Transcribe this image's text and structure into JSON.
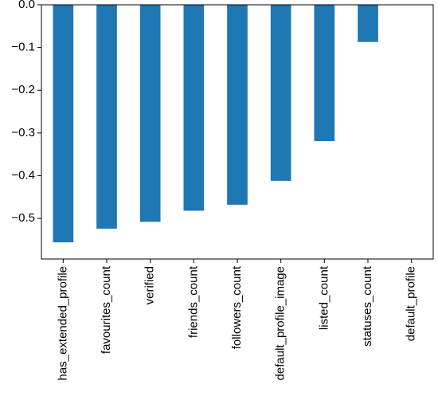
{
  "chart_data": {
    "type": "bar",
    "title": "",
    "xlabel": "",
    "ylabel": "",
    "categories": [
      "has_extended_profile",
      "favourites_count",
      "verified",
      "friends_count",
      "followers_count",
      "default_profile_image",
      "listed_count",
      "statuses_count",
      "default_profile"
    ],
    "values": [
      -0.556,
      -0.524,
      -0.508,
      -0.482,
      -0.468,
      -0.412,
      -0.319,
      -0.087,
      0.0
    ],
    "ylim": [
      -0.595,
      0.0
    ],
    "yticks": [
      0.0,
      -0.1,
      -0.2,
      -0.3,
      -0.4,
      -0.5
    ],
    "ytick_labels": [
      "0.0",
      "−0.1",
      "−0.2",
      "−0.3",
      "−0.4",
      "−0.5"
    ],
    "grid": false,
    "legend": "none",
    "bar_color": "#1f77b4"
  }
}
